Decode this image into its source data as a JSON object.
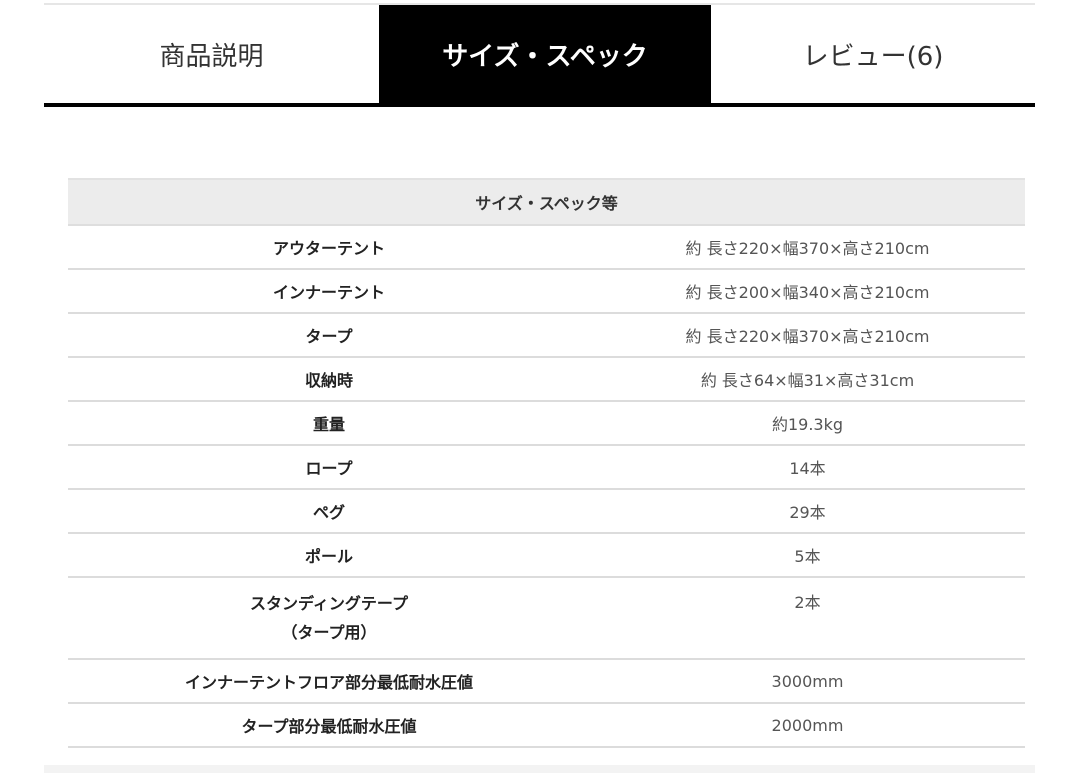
{
  "tabs": [
    {
      "label": "商品説明",
      "active": false
    },
    {
      "label": "サイズ・スペック",
      "active": true
    },
    {
      "label": "レビュー(6)",
      "active": false
    }
  ],
  "spec_table": {
    "header": "サイズ・スペック等",
    "rows": [
      {
        "label": "アウターテント",
        "value": "約 長さ220×幅370×高さ210cm"
      },
      {
        "label": "インナーテント",
        "value": "約 長さ200×幅340×高さ210cm"
      },
      {
        "label": "タープ",
        "value": "約 長さ220×幅370×高さ210cm"
      },
      {
        "label": "収納時",
        "value": "約 長さ64×幅31×高さ31cm"
      },
      {
        "label": "重量",
        "value": "約19.3kg"
      },
      {
        "label": "ロープ",
        "value": "14本"
      },
      {
        "label": "ペグ",
        "value": "29本"
      },
      {
        "label": "ポール",
        "value": "5本"
      },
      {
        "label": "スタンディングテープ",
        "label2": "（タープ用）",
        "value": "2本"
      },
      {
        "label": "インナーテントフロア部分最低耐水圧値",
        "value": "3000mm"
      },
      {
        "label": "タープ部分最低耐水圧値",
        "value": "2000mm"
      }
    ]
  }
}
